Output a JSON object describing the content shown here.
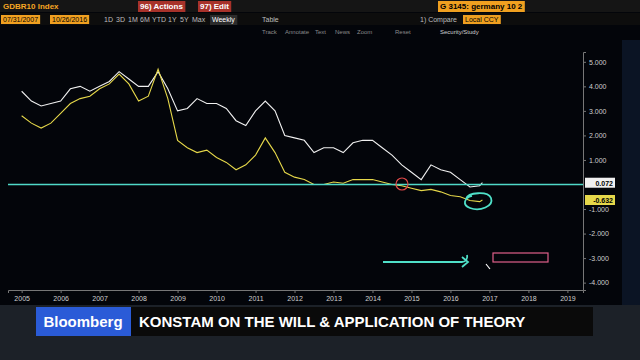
{
  "chart_data": {
    "type": "line",
    "x": [
      2005.0,
      2005.25,
      2005.5,
      2005.75,
      2006.0,
      2006.25,
      2006.5,
      2006.75,
      2007.0,
      2007.25,
      2007.5,
      2007.75,
      2008.0,
      2008.25,
      2008.5,
      2008.75,
      2009.0,
      2009.25,
      2009.5,
      2009.75,
      2010.0,
      2010.25,
      2010.5,
      2010.75,
      2011.0,
      2011.25,
      2011.5,
      2011.75,
      2012.0,
      2012.25,
      2012.5,
      2012.75,
      2013.0,
      2013.25,
      2013.5,
      2013.75,
      2014.0,
      2014.25,
      2014.5,
      2014.75,
      2015.0,
      2015.25,
      2015.5,
      2015.75,
      2016.0,
      2016.25,
      2016.5,
      2016.75,
      2016.82
    ],
    "series": [
      {
        "color": "#f0f0f0",
        "values": [
          3.8,
          3.4,
          3.2,
          3.3,
          3.4,
          3.9,
          4.0,
          3.8,
          4.0,
          4.2,
          4.6,
          4.3,
          4.0,
          4.0,
          4.6,
          3.9,
          3.0,
          3.1,
          3.5,
          3.3,
          3.3,
          3.1,
          2.6,
          2.4,
          3.0,
          3.4,
          3.0,
          2.0,
          1.9,
          1.8,
          1.3,
          1.5,
          1.5,
          1.3,
          1.7,
          1.8,
          1.8,
          1.5,
          1.2,
          0.8,
          0.5,
          0.2,
          0.8,
          0.6,
          0.5,
          0.2,
          -0.1,
          -0.05,
          0.072
        ]
      },
      {
        "color": "#e6d84a",
        "values": [
          2.8,
          2.5,
          2.3,
          2.5,
          2.9,
          3.3,
          3.5,
          3.6,
          3.9,
          4.1,
          4.5,
          4.1,
          3.4,
          3.6,
          4.7,
          3.5,
          1.8,
          1.5,
          1.3,
          1.4,
          1.1,
          0.9,
          0.6,
          0.8,
          1.2,
          1.9,
          1.3,
          0.5,
          0.3,
          0.2,
          0.0,
          0.0,
          0.1,
          0.05,
          0.2,
          0.2,
          0.2,
          0.1,
          0.0,
          -0.05,
          -0.15,
          -0.25,
          -0.2,
          -0.3,
          -0.45,
          -0.5,
          -0.65,
          -0.7,
          -0.632
        ]
      }
    ],
    "xlim": [
      2004.65,
      2019.4
    ],
    "xticks": [
      2005,
      2006,
      2007,
      2008,
      2009,
      2010,
      2011,
      2012,
      2013,
      2014,
      2015,
      2016,
      2017,
      2018,
      2019
    ],
    "ylim": [
      -4.3,
      5.4
    ],
    "yticks": [
      {
        "value": 5,
        "label": "5.000"
      },
      {
        "value": 4,
        "label": "4.000"
      },
      {
        "value": 3,
        "label": "3.000"
      },
      {
        "value": 2,
        "label": "2.000"
      },
      {
        "value": 1,
        "label": "1.000"
      },
      {
        "value": -1,
        "label": "-1.000"
      },
      {
        "value": -2,
        "label": "-2.000"
      },
      {
        "value": -3,
        "label": "-3.000"
      },
      {
        "value": -4,
        "label": "-4.000"
      }
    ],
    "grid": false,
    "reference_line": {
      "y": 0,
      "color": "#4fd9c8"
    },
    "annotations": [
      {
        "text": "0.072",
        "y": 0.072,
        "color": "#f0f0f0"
      },
      {
        "text": "-0.632",
        "y": -0.632,
        "color": "#e6d84a"
      }
    ]
  },
  "screen": {
    "header": [
      "GDBR10 Index",
      "96) Actions",
      "97) Edit",
      "G 3145: germany 10 2"
    ],
    "toolbar": [
      "07/31/2007",
      "10/26/2016",
      "1D",
      "3D",
      "1M",
      "6M",
      "YTD",
      "1Y",
      "5Y",
      "Max",
      "Weekly",
      "Table",
      "1) Compare",
      "Local CCY"
    ],
    "study": [
      "Track",
      "Annotate",
      "Text",
      "News",
      "Zoom",
      "Reset",
      "Security/Study"
    ],
    "banner": {
      "brand": "Bloomberg",
      "headline": "KONSTAM ON THE WILL & APPLICATION OF THEORY"
    }
  }
}
